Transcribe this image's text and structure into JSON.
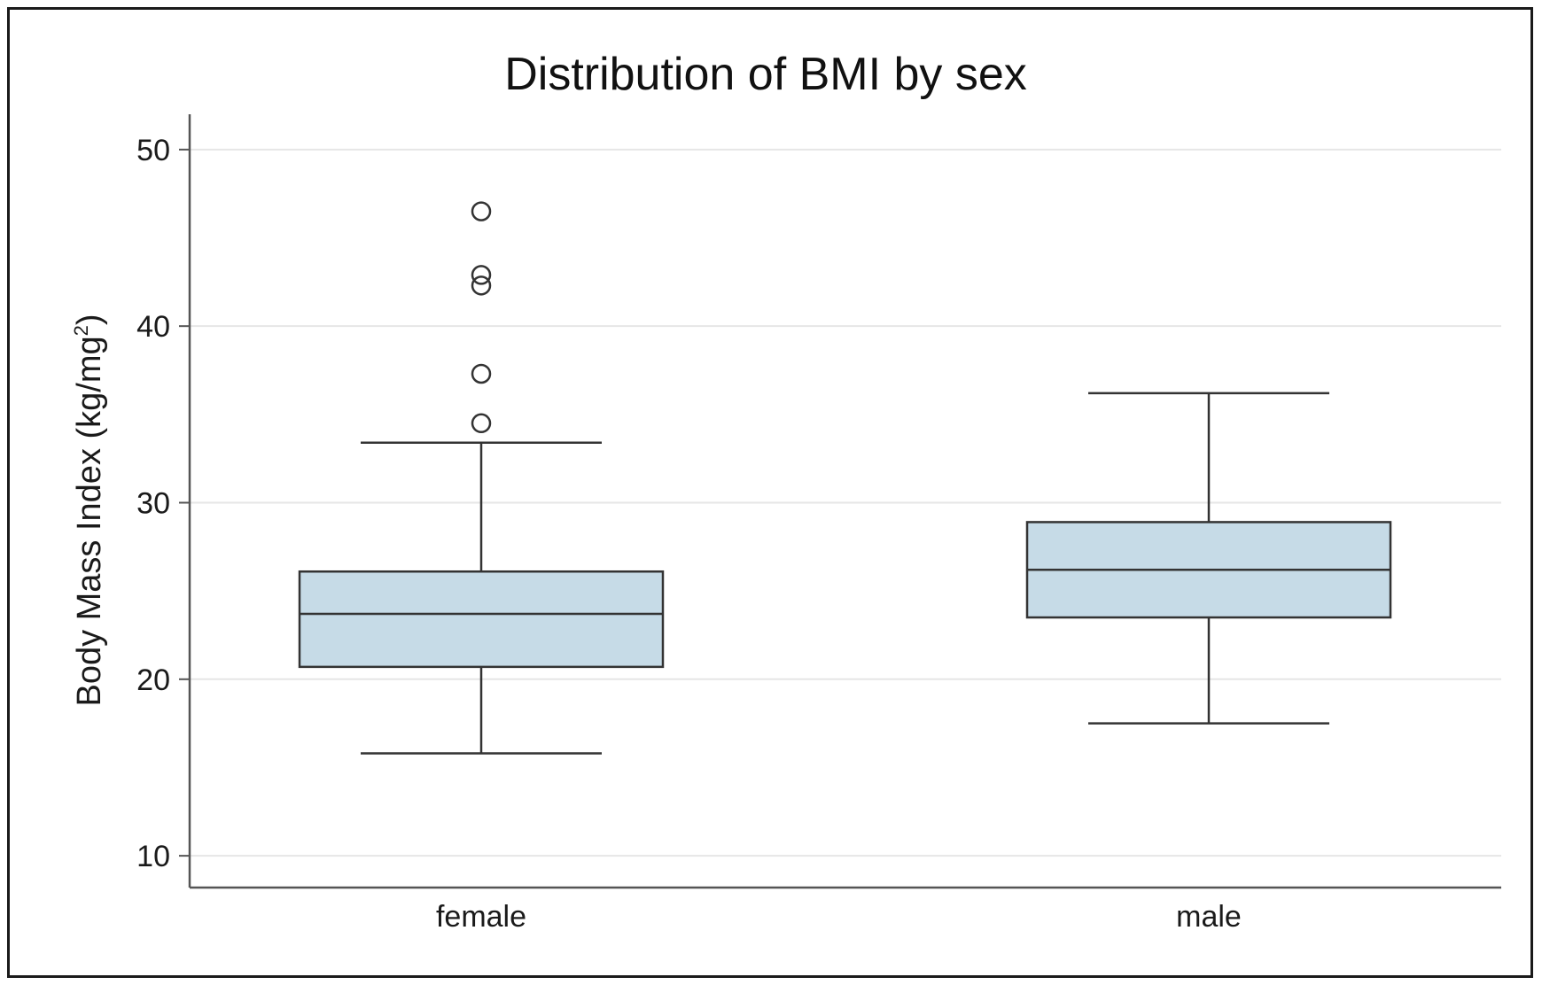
{
  "chart_data": {
    "type": "boxplot",
    "title": "Distribution of BMI by sex",
    "xlabel": "",
    "ylabel": {
      "base": "Body Mass Index (kg/mg",
      "superscript": "2",
      "closing": ")"
    },
    "ylim": [
      8.2,
      52
    ],
    "yticks": [
      10,
      20,
      30,
      40,
      50
    ],
    "ytick_labels": [
      "10",
      "20",
      "30",
      "40",
      "50"
    ],
    "grid": true,
    "categories": [
      "female",
      "male"
    ],
    "boxes": [
      {
        "name": "female",
        "whisker_low": 15.8,
        "q1": 20.7,
        "median": 23.7,
        "q3": 26.1,
        "whisker_high": 33.4,
        "outliers": [
          34.5,
          37.3,
          42.3,
          42.9,
          46.5
        ]
      },
      {
        "name": "male",
        "whisker_low": 17.5,
        "q1": 23.5,
        "median": 26.2,
        "q3": 28.9,
        "whisker_high": 36.2,
        "outliers": []
      }
    ],
    "colors": {
      "box_fill": "#c6dbe7",
      "line": "#333333",
      "grid": "#e6e6e6",
      "axis": "#555555"
    }
  }
}
